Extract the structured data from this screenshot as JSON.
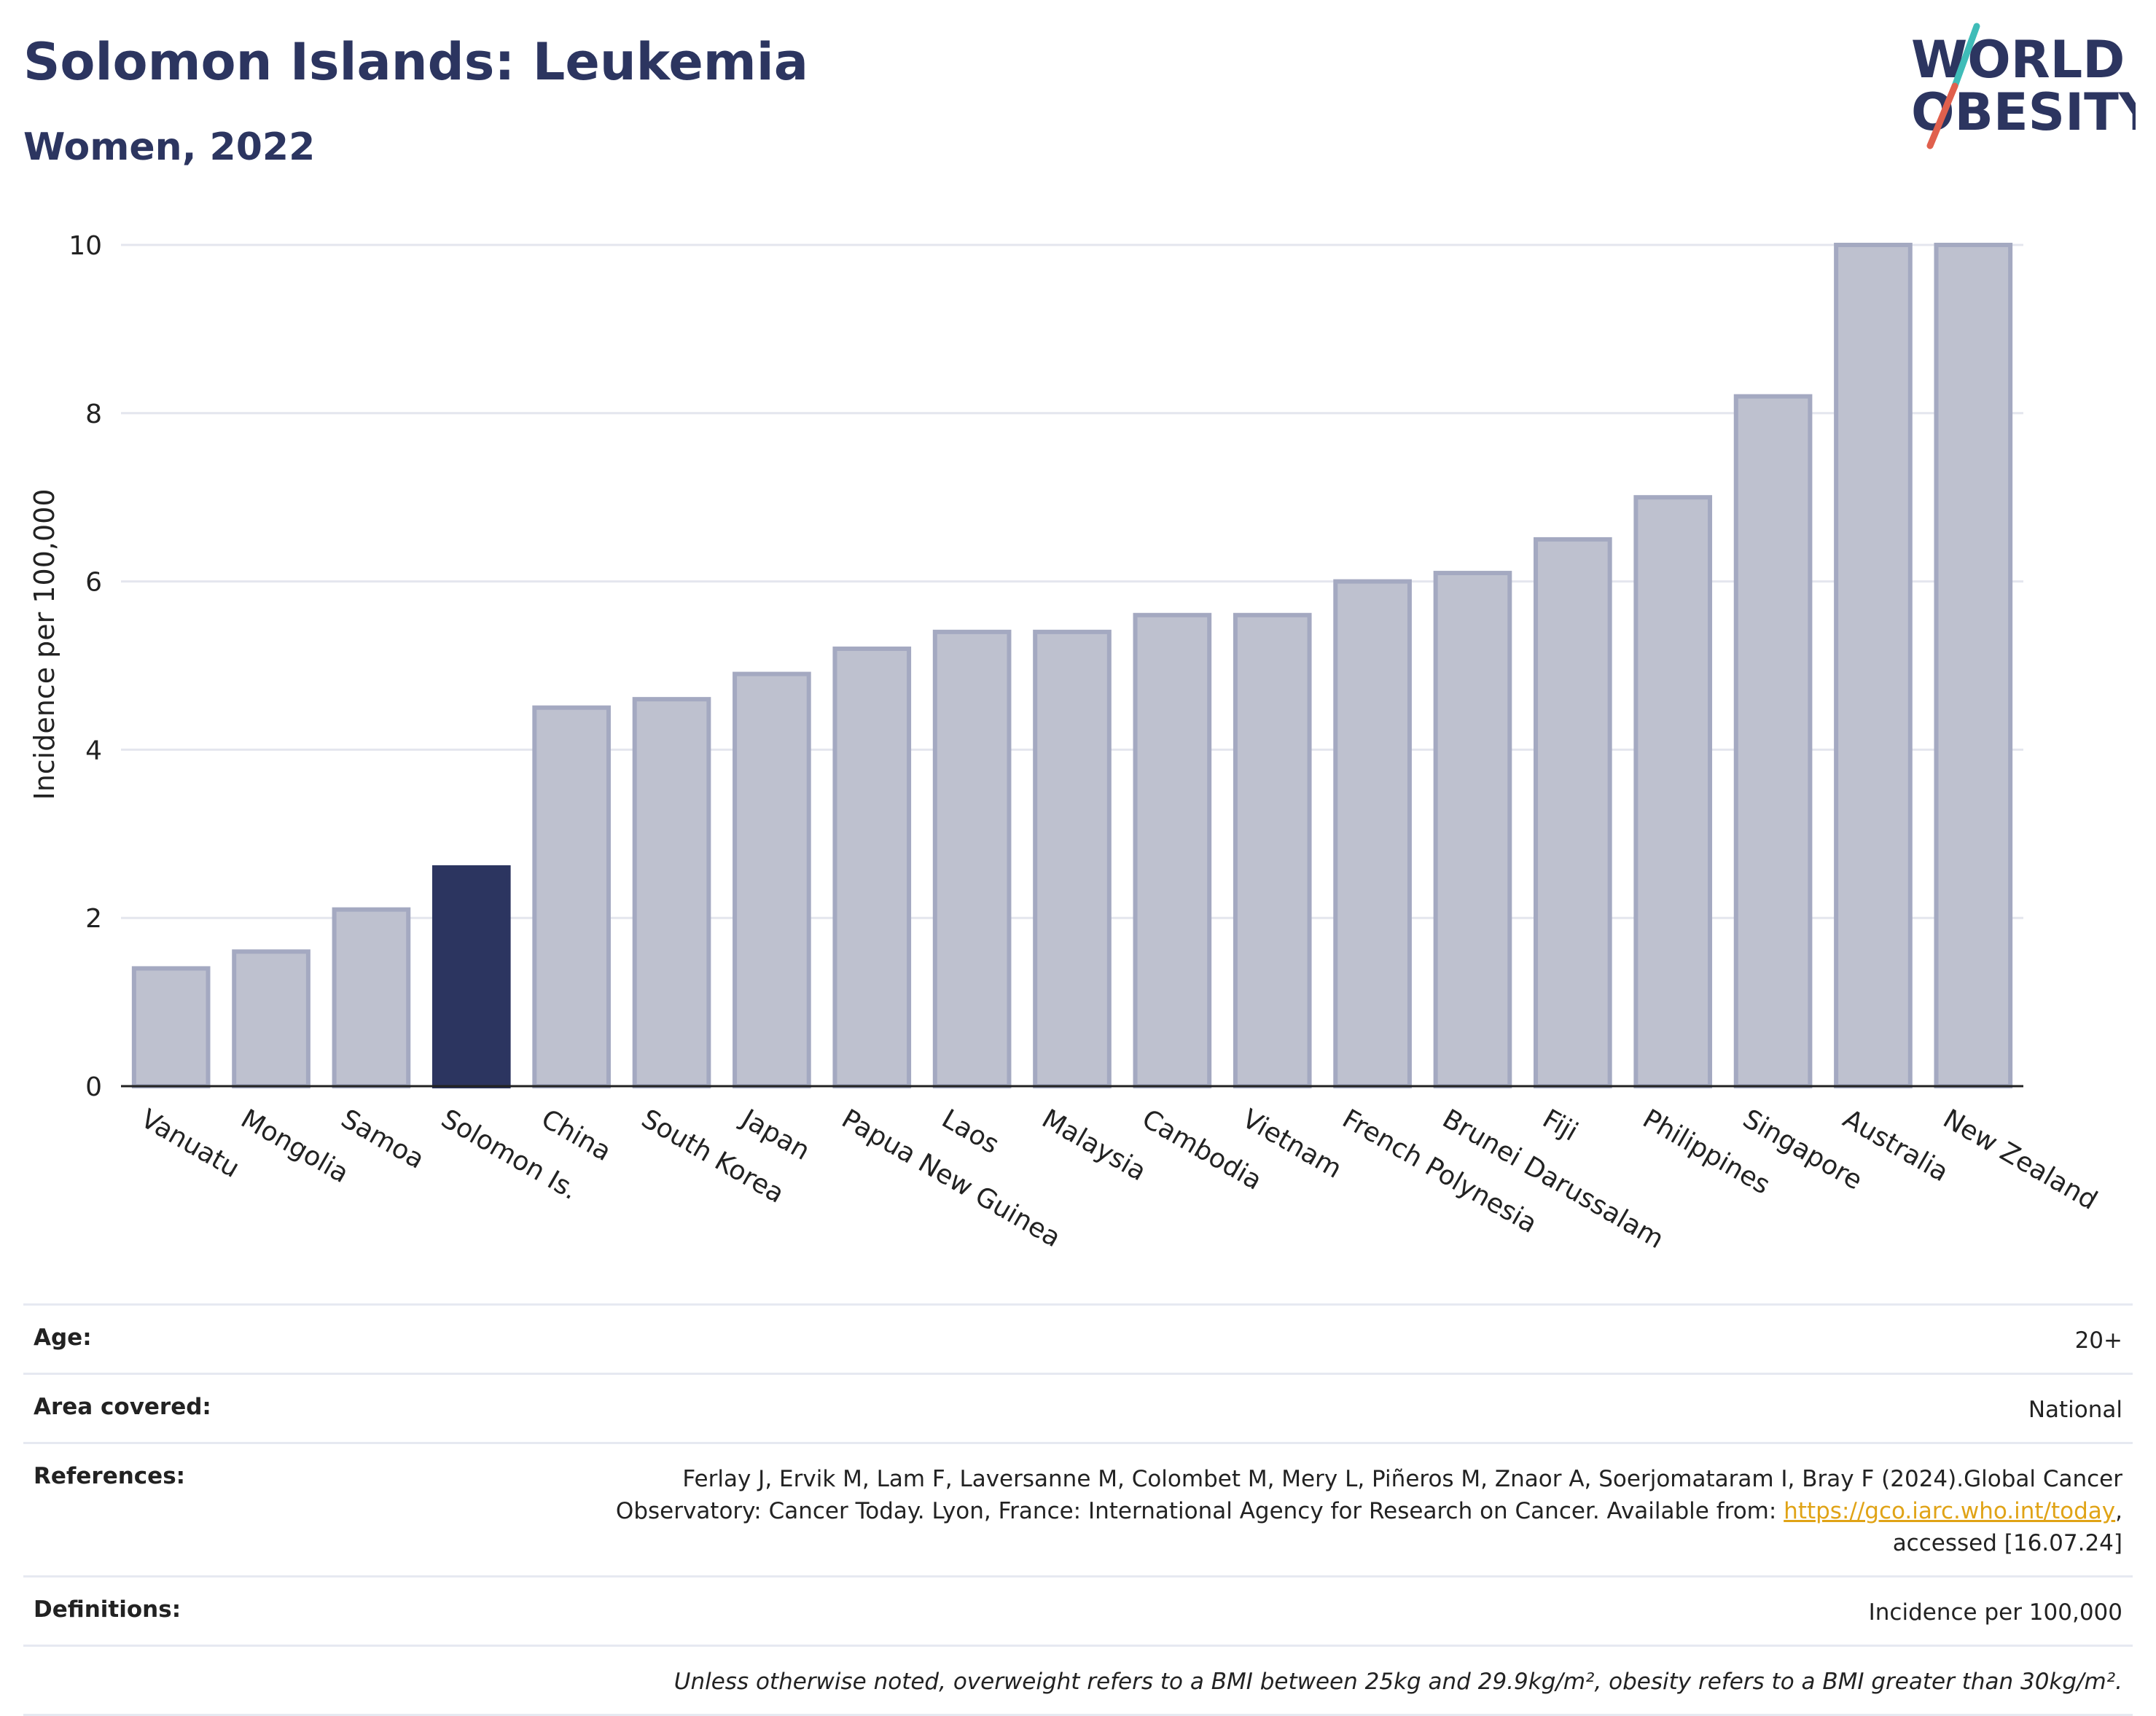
{
  "header": {
    "title": "Solomon Islands: Leukemia",
    "subtitle": "Women, 2022"
  },
  "logo": {
    "line1": "WORLD",
    "line2": "OBESITY"
  },
  "chart_data": {
    "type": "bar",
    "ylabel": "Incidence per 100,000",
    "xlabel": "",
    "ylim": [
      0,
      10
    ],
    "yticks": [
      0,
      2,
      4,
      6,
      8,
      10
    ],
    "grid": true,
    "highlight": "Solomon Is.",
    "highlight_color": "#2c3560",
    "bar_color": "#bec1cf",
    "bar_edge_color": "#a4a9c1",
    "categories": [
      "Vanuatu",
      "Mongolia",
      "Samoa",
      "Solomon Is.",
      "China",
      "South Korea",
      "Japan",
      "Papua New Guinea",
      "Laos",
      "Malaysia",
      "Cambodia",
      "Vietnam",
      "French Polynesia",
      "Brunei Darussalam",
      "Fiji",
      "Philippines",
      "Singapore",
      "Australia",
      "New Zealand"
    ],
    "values": [
      1.4,
      1.6,
      2.1,
      2.6,
      4.5,
      4.6,
      4.9,
      5.2,
      5.4,
      5.4,
      5.6,
      5.6,
      6.0,
      6.1,
      6.5,
      7.0,
      8.2,
      10.0,
      10.0
    ]
  },
  "meta": {
    "age_label": "Age:",
    "age_value": "20+",
    "area_label": "Area covered:",
    "area_value": "National",
    "references_label": "References:",
    "references_line1": "Ferlay J, Ervik M, Lam F, Laversanne M, Colombet M, Mery L, Piñeros M, Znaor A, Soerjomataram I, Bray F (2024).Global Cancer",
    "references_line2": "Observatory: Cancer Today. Lyon, France: International Agency for Research on Cancer. Available from: ",
    "references_link": "https://gco.iarc.who.int/today",
    "references_line2_end": ",",
    "references_line3": "accessed [16.07.24]",
    "definitions_label": "Definitions:",
    "definitions_value": "Incidence per 100,000",
    "note": "Unless otherwise noted, overweight refers to a BMI between 25kg and 29.9kg/m², obesity refers to a BMI greater than 30kg/m²."
  }
}
